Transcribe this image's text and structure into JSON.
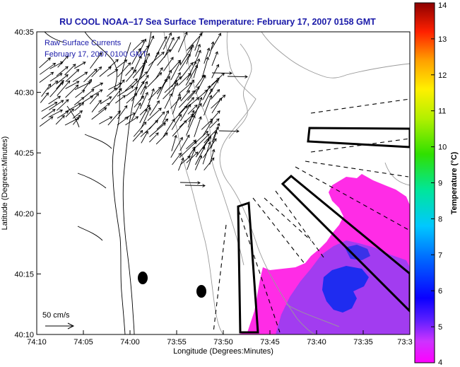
{
  "figure": {
    "title": "RU COOL  NOAA–17  Sea Surface Temperature:  February 17, 2007 0158 GMT",
    "legend_lines": [
      "Raw Surface Currents",
      "February 17, 2007 0100 GMT"
    ],
    "x_label": "Longitude (Degrees:Minutes)",
    "y_label": "Latitude (Degrees:Minutes)",
    "scale_label": "50 cm/s",
    "colorbar_label": "Temperature (°C)"
  },
  "map_data": {
    "x_ticks": [
      "74:10",
      "74:05",
      "74:00",
      "73:55",
      "73:50",
      "73:45",
      "73:40",
      "73:35",
      "73:3"
    ],
    "y_ticks": [
      "40:35",
      "40:30",
      "40:25",
      "40:20",
      "40:15",
      "40:10"
    ],
    "colorbar_ticks": [
      "14",
      "13",
      "12",
      "11",
      "10",
      "9",
      "8",
      "7",
      "6",
      "5",
      "4"
    ],
    "colorbar_range": [
      4,
      14
    ],
    "colors": {
      "title": "#1a1aa8",
      "sst_warm": "#ff2ce6",
      "sst_mid": "#a23cf0",
      "sst_cold": "#1f2cf0"
    }
  }
}
